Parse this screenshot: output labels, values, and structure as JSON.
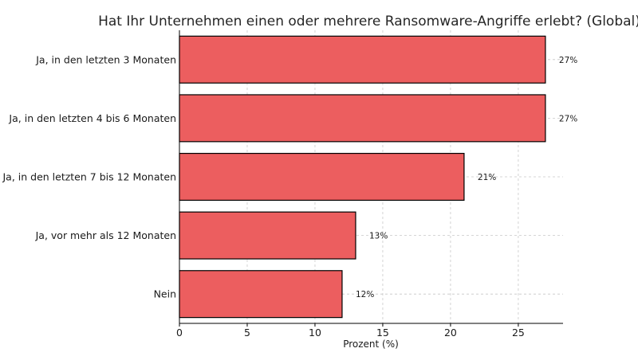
{
  "chart_data": {
    "type": "bar",
    "orientation": "horizontal",
    "title": "Hat Ihr Unternehmen einen oder mehrere Ransomware-Angriffe erlebt? (Global)",
    "xlabel": "Prozent (%)",
    "ylabel": "",
    "categories": [
      "Ja, in den letzten 3 Monaten",
      "Ja, in den letzten 4 bis 6 Monaten",
      "Ja, in den letzten 7 bis 12 Monaten",
      "Ja, vor mehr als 12 Monaten",
      "Nein"
    ],
    "values": [
      27,
      27,
      21,
      13,
      12
    ],
    "data_labels": [
      "27%",
      "27%",
      "21%",
      "13%",
      "12%"
    ],
    "xlim": [
      0,
      28.3
    ],
    "xticks": [
      0,
      5,
      10,
      15,
      20,
      25
    ],
    "grid": true,
    "bar_color": "#ec5e5f",
    "bar_edge_color": "#000000"
  }
}
